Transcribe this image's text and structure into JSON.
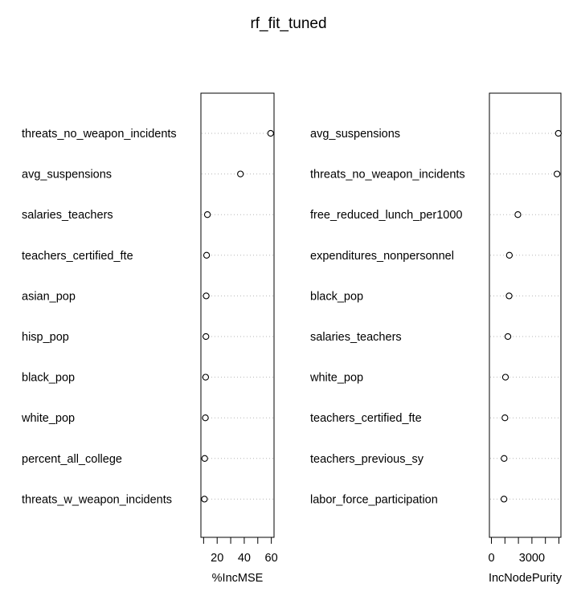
{
  "chart_data": {
    "type": "scatter",
    "title": "rf_fit_tuned",
    "panels": [
      {
        "xlabel": "%IncMSE",
        "xticks": [
          20,
          40,
          60
        ],
        "minor_ticks": [
          10,
          30,
          50
        ],
        "xlim": [
          8,
          62
        ],
        "categories": [
          "threats_no_weapon_incidents",
          "avg_suspensions",
          "salaries_teachers",
          "teachers_certified_fte",
          "asian_pop",
          "hisp_pop",
          "black_pop",
          "white_pop",
          "percent_all_college",
          "threats_w_weapon_incidents"
        ],
        "values": [
          59.5,
          37.2,
          12.8,
          12.2,
          11.9,
          11.7,
          11.5,
          11.3,
          10.8,
          10.6
        ]
      },
      {
        "xlabel": "IncNodePurity",
        "xticks": [
          0,
          3000
        ],
        "minor_ticks": [
          1000,
          2000,
          4000,
          5000
        ],
        "xlim": [
          -150,
          5150
        ],
        "categories": [
          "avg_suspensions",
          "threats_no_weapon_incidents",
          "free_reduced_lunch_per1000",
          "expenditures_nonpersonnel",
          "black_pop",
          "salaries_teachers",
          "white_pop",
          "teachers_certified_fte",
          "teachers_previous_sy",
          "labor_force_participation"
        ],
        "values": [
          4960,
          4860,
          1960,
          1330,
          1310,
          1220,
          1040,
          1000,
          940,
          930
        ]
      }
    ],
    "grid": false,
    "legend": "none"
  }
}
